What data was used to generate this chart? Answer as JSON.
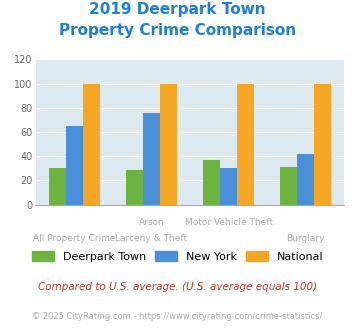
{
  "title_line1": "2019 Deerpark Town",
  "title_line2": "Property Crime Comparison",
  "title_color": "#1e7fd4",
  "deerpark": [
    30,
    29,
    37,
    31
  ],
  "newyork": [
    65,
    76,
    30,
    42
  ],
  "national": [
    100,
    100,
    100,
    100
  ],
  "colors": {
    "deerpark": "#6db33f",
    "newyork": "#4a90d9",
    "national": "#f5a623"
  },
  "ylim": [
    0,
    120
  ],
  "yticks": [
    0,
    20,
    40,
    60,
    80,
    100,
    120
  ],
  "bg_color": "#dce9f0",
  "legend_labels": [
    "Deerpark Town",
    "New York",
    "National"
  ],
  "top_labels": [
    "",
    "Arson",
    "Motor Vehicle Theft",
    ""
  ],
  "bot_labels": [
    "All Property Crime",
    "Larceny & Theft",
    "",
    "Burglary"
  ],
  "footnote1": "Compared to U.S. average. (U.S. average equals 100)",
  "footnote2": "© 2025 CityRating.com - https://www.cityrating.com/crime-statistics/",
  "footnote1_color": "#c0392b",
  "footnote2_color": "#aaaaaa",
  "label_color": "#aaaaaa"
}
